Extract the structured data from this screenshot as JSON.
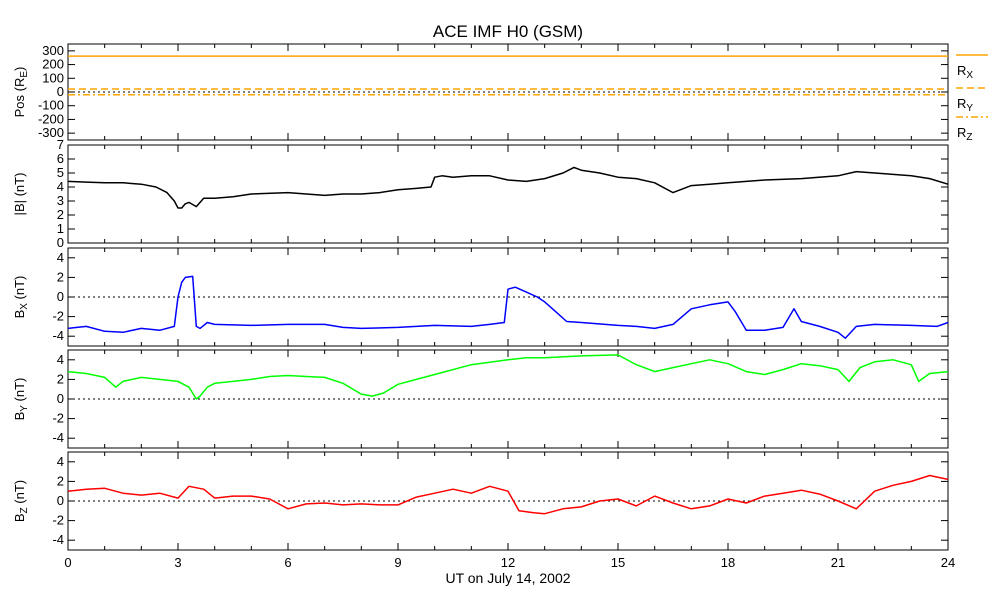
{
  "chart_data": {
    "title": "ACE IMF H0 (GSM)",
    "xlabel": "UT on July 14, 2002",
    "x_ticks": [
      "0",
      "3",
      "6",
      "9",
      "12",
      "15",
      "18",
      "21",
      "24"
    ],
    "xlim": [
      0,
      24
    ],
    "panels": [
      {
        "id": "pos",
        "type": "line",
        "ylabel": "Pos (R_E)",
        "ylim": [
          -350,
          350
        ],
        "y_ticks": [
          300,
          200,
          100,
          0,
          -100,
          -200,
          -300
        ],
        "zero_line": true,
        "series": [
          {
            "name": "R_X",
            "color": "#ffa500",
            "style": "solid",
            "x": [
              0,
              24
            ],
            "y": [
              262,
              262
            ]
          },
          {
            "name": "R_Y",
            "color": "#ffa500",
            "style": "dashed",
            "x": [
              0,
              24
            ],
            "y": [
              22,
              22
            ]
          },
          {
            "name": "R_Z",
            "color": "#ffa500",
            "style": "dashdot",
            "x": [
              0,
              24
            ],
            "y": [
              -20,
              -20
            ]
          }
        ]
      },
      {
        "id": "bmag",
        "type": "line",
        "ylabel": "|B| (nT)",
        "ylim": [
          0,
          7
        ],
        "y_ticks": [
          0,
          1,
          2,
          3,
          4,
          5,
          6,
          7
        ],
        "zero_line": false,
        "series": [
          {
            "color": "#000000",
            "x": [
              0,
              0.5,
              1,
              1.5,
              2,
              2.4,
              2.7,
              2.9,
              3.0,
              3.1,
              3.2,
              3.3,
              3.5,
              3.7,
              4,
              4.5,
              5,
              6,
              7,
              7.5,
              8,
              8.5,
              9,
              9.5,
              9.9,
              10.0,
              10.2,
              10.5,
              11,
              11.5,
              12,
              12.5,
              13,
              13.5,
              13.8,
              14,
              14.5,
              15,
              15.5,
              16,
              16.5,
              17,
              17.5,
              18,
              19,
              20,
              21,
              21.5,
              22,
              22.5,
              23,
              23.5,
              24
            ],
            "y": [
              4.4,
              4.35,
              4.3,
              4.3,
              4.2,
              4.0,
              3.6,
              3.0,
              2.5,
              2.5,
              2.8,
              2.9,
              2.6,
              3.2,
              3.2,
              3.3,
              3.5,
              3.6,
              3.4,
              3.5,
              3.5,
              3.6,
              3.8,
              3.9,
              4.0,
              4.7,
              4.8,
              4.7,
              4.8,
              4.8,
              4.5,
              4.4,
              4.6,
              5.0,
              5.4,
              5.2,
              5.0,
              4.7,
              4.6,
              4.3,
              3.6,
              4.1,
              4.2,
              4.3,
              4.5,
              4.6,
              4.8,
              5.1,
              5.0,
              4.9,
              4.8,
              4.6,
              4.2
            ]
          }
        ]
      },
      {
        "id": "bx",
        "type": "line",
        "ylabel": "B_X (nT)",
        "ylim": [
          -5,
          5
        ],
        "y_ticks": [
          4,
          2,
          0,
          -2,
          -4
        ],
        "zero_line": true,
        "series": [
          {
            "color": "#0000ff",
            "x": [
              0,
              0.5,
              1,
              1.5,
              2,
              2.5,
              2.9,
              3.0,
              3.1,
              3.2,
              3.4,
              3.5,
              3.6,
              3.8,
              4,
              5,
              6,
              7,
              7.5,
              8,
              9,
              10,
              11,
              11.5,
              11.9,
              12.0,
              12.2,
              12.5,
              12.8,
              13,
              13.3,
              13.6,
              14,
              15,
              15.5,
              16,
              16.5,
              17,
              17.5,
              18,
              18.2,
              18.5,
              19,
              19.5,
              19.8,
              20,
              20.5,
              21,
              21.2,
              21.5,
              22,
              23,
              23.7,
              24
            ],
            "y": [
              -3.2,
              -3.0,
              -3.5,
              -3.6,
              -3.2,
              -3.4,
              -3.0,
              0.0,
              1.5,
              2.0,
              2.1,
              -3.0,
              -3.2,
              -2.6,
              -2.8,
              -2.9,
              -2.8,
              -2.8,
              -3.1,
              -3.2,
              -3.1,
              -2.9,
              -3.0,
              -2.8,
              -2.6,
              0.8,
              1.0,
              0.5,
              0.0,
              -0.5,
              -1.5,
              -2.5,
              -2.6,
              -2.9,
              -3.0,
              -3.2,
              -2.8,
              -1.2,
              -0.8,
              -0.5,
              -1.5,
              -3.4,
              -3.4,
              -3.1,
              -1.2,
              -2.5,
              -3.0,
              -3.6,
              -4.2,
              -3.0,
              -2.8,
              -2.9,
              -3.0,
              -2.6
            ]
          }
        ]
      },
      {
        "id": "by",
        "type": "line",
        "ylabel": "B_Y (nT)",
        "ylim": [
          -5,
          5
        ],
        "y_ticks": [
          4,
          2,
          0,
          -2,
          -4
        ],
        "zero_line": true,
        "series": [
          {
            "color": "#00ff00",
            "x": [
              0,
              0.5,
              1,
              1.3,
              1.5,
              2,
              2.5,
              3,
              3.3,
              3.5,
              3.6,
              3.8,
              4,
              4.5,
              5,
              5.5,
              6,
              6.5,
              7,
              7.5,
              8,
              8.3,
              8.6,
              9,
              9.5,
              10,
              11,
              12,
              12.5,
              13,
              14,
              15,
              15.5,
              16,
              16.5,
              17,
              17.5,
              18,
              18.5,
              19,
              19.5,
              20,
              20.5,
              21,
              21.3,
              21.6,
              22,
              22.5,
              23,
              23.2,
              23.5,
              24
            ],
            "y": [
              2.8,
              2.6,
              2.2,
              1.2,
              1.8,
              2.2,
              2.0,
              1.8,
              1.2,
              0.0,
              0.3,
              1.2,
              1.6,
              1.8,
              2.0,
              2.3,
              2.4,
              2.3,
              2.2,
              1.6,
              0.5,
              0.3,
              0.6,
              1.5,
              2.0,
              2.5,
              3.5,
              4.0,
              4.2,
              4.2,
              4.4,
              4.5,
              3.5,
              2.8,
              3.2,
              3.6,
              4.0,
              3.6,
              2.8,
              2.5,
              3.0,
              3.6,
              3.4,
              3.0,
              1.8,
              3.2,
              3.8,
              4.0,
              3.5,
              1.8,
              2.6,
              2.8
            ]
          }
        ]
      },
      {
        "id": "bz",
        "type": "line",
        "ylabel": "B_Z (nT)",
        "ylim": [
          -5,
          5
        ],
        "y_ticks": [
          4,
          2,
          0,
          -2,
          -4
        ],
        "zero_line": true,
        "series": [
          {
            "color": "#ff0000",
            "x": [
              0,
              0.5,
              1,
              1.5,
              2,
              2.5,
              3,
              3.3,
              3.7,
              4,
              4.5,
              5,
              5.5,
              6,
              6.5,
              7,
              7.5,
              8,
              8.5,
              9,
              9.5,
              10,
              10.5,
              11,
              11.5,
              12,
              12.3,
              12.7,
              13,
              13.5,
              14,
              14.5,
              15,
              15.5,
              16,
              16.5,
              17,
              17.5,
              18,
              18.5,
              19,
              19.5,
              20,
              20.5,
              21,
              21.5,
              22,
              22.5,
              23,
              23.5,
              24
            ],
            "y": [
              1.0,
              1.2,
              1.3,
              0.8,
              0.6,
              0.8,
              0.3,
              1.5,
              1.2,
              0.3,
              0.5,
              0.5,
              0.2,
              -0.8,
              -0.3,
              -0.2,
              -0.4,
              -0.3,
              -0.4,
              -0.4,
              0.4,
              0.8,
              1.2,
              0.8,
              1.5,
              1.0,
              -1.0,
              -1.2,
              -1.3,
              -0.8,
              -0.6,
              0.0,
              0.2,
              -0.5,
              0.5,
              -0.2,
              -0.8,
              -0.5,
              0.2,
              -0.2,
              0.5,
              0.8,
              1.1,
              0.7,
              0.0,
              -0.8,
              1.0,
              1.6,
              2.0,
              2.6,
              2.2
            ]
          }
        ]
      }
    ],
    "legend": {
      "placement": "right of top panel",
      "entries": [
        {
          "label": "R",
          "sub": "X",
          "color": "#ffa500",
          "style": "solid"
        },
        {
          "label": "R",
          "sub": "Y",
          "color": "#ffa500",
          "style": "dashed"
        },
        {
          "label": "R",
          "sub": "Z",
          "color": "#ffa500",
          "style": "dashdot"
        }
      ]
    }
  }
}
